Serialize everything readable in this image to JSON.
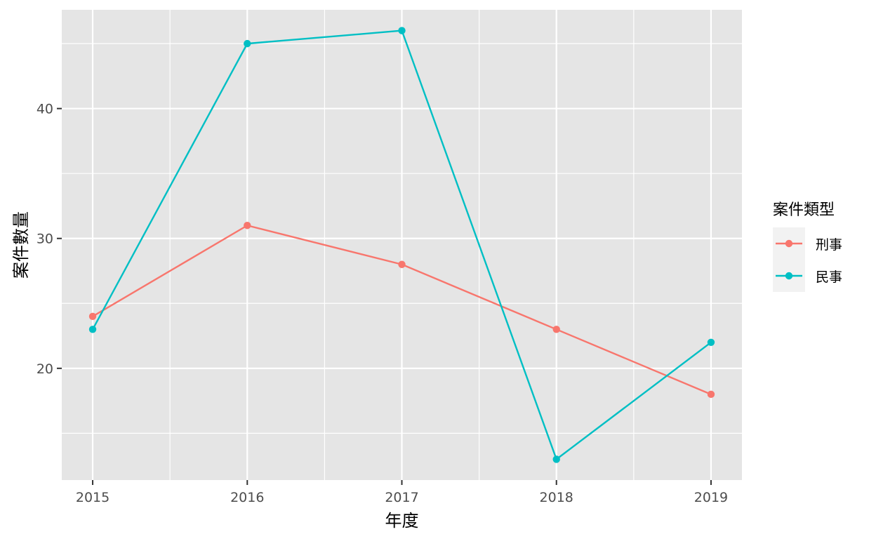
{
  "chart_data": {
    "type": "line",
    "x": [
      2015,
      2016,
      2017,
      2018,
      2019
    ],
    "xlabel": "年度",
    "ylabel": "案件數量",
    "yticks": [
      20,
      30,
      40
    ],
    "ylim": [
      11.4,
      47.6
    ],
    "xlim": [
      2014.8,
      2019.2
    ],
    "grid": true,
    "legend_placement": "right",
    "legend_title": "案件類型",
    "series": [
      {
        "name": "刑事",
        "color": "#F8766D",
        "values": [
          24,
          31,
          28,
          23,
          18
        ]
      },
      {
        "name": "民事",
        "color": "#00BFC4",
        "values": [
          23,
          45,
          46,
          13,
          22
        ]
      }
    ],
    "panel_background": "#E5E5E5",
    "grid_color": "#FFFFFF"
  }
}
